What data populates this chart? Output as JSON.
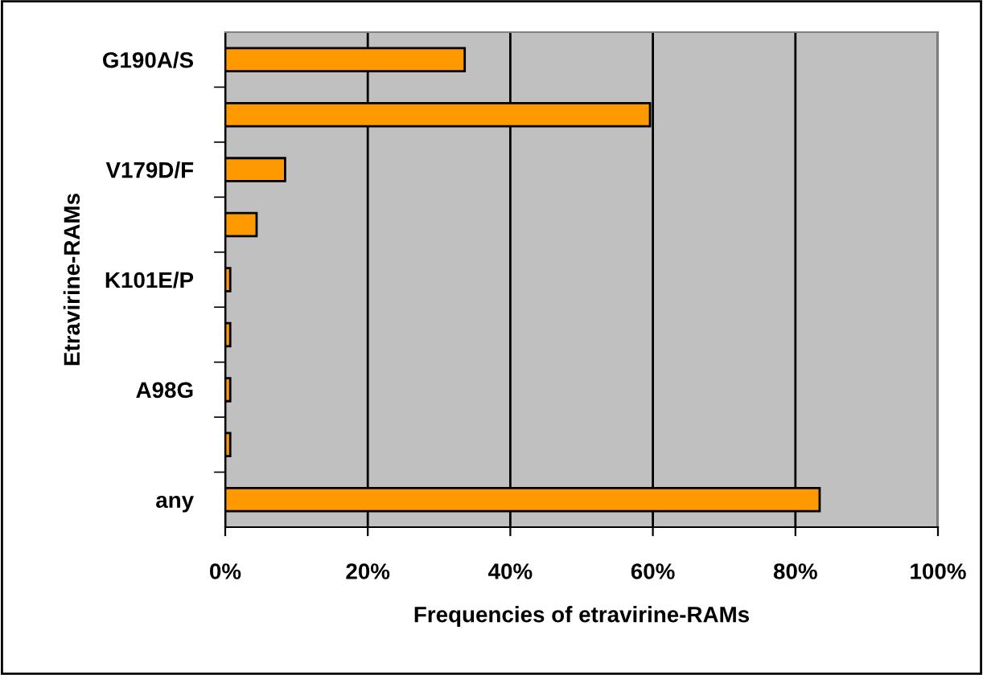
{
  "chart_data": {
    "type": "bar",
    "orientation": "horizontal",
    "categories": [
      "G190A/S",
      null,
      "V179D/F",
      null,
      "K101E/P",
      null,
      "A98G",
      null,
      "any"
    ],
    "values": [
      33.6,
      59.6,
      8.4,
      4.4,
      0.7,
      0.7,
      0.7,
      0.7,
      83.4
    ],
    "color": "#ff9900",
    "xlim": [
      0,
      100
    ],
    "xticks": [
      {
        "value": 0,
        "label": "0%"
      },
      {
        "value": 20,
        "label": "20%"
      },
      {
        "value": 40,
        "label": "40%"
      },
      {
        "value": 60,
        "label": "60%"
      },
      {
        "value": 80,
        "label": "80%"
      },
      {
        "value": 100,
        "label": "100%"
      }
    ],
    "xlabel": "Frequencies of etravirine-RAMs",
    "ylabel": "Etravirine-RAMs",
    "grid": "x"
  }
}
